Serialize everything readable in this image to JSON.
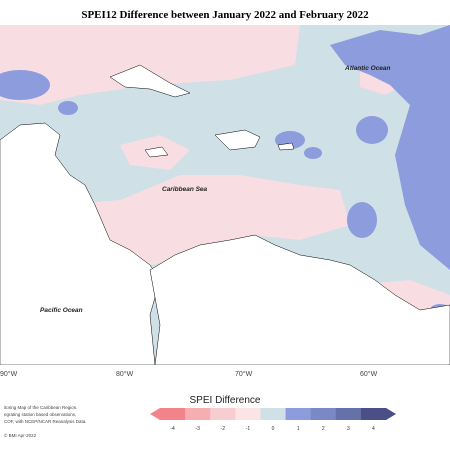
{
  "title": "SPEI12 Difference between January 2022 and February 2022",
  "map": {
    "labels": {
      "atlantic": "Atlantic Ocean",
      "caribbean": "Caribbean Sea",
      "pacific": "Pacific Ocean"
    },
    "longitude_ticks": [
      "90°W",
      "80°W",
      "70°W",
      "60°W"
    ]
  },
  "legend": {
    "title": "SPEI Difference",
    "ticks": [
      "-4",
      "-3",
      "-2",
      "-1",
      "0",
      "1",
      "2",
      "3",
      "4"
    ],
    "colors": [
      "#f2838a",
      "#f5aeb2",
      "#f8cdd1",
      "#fbe3e6",
      "#cfe0e7",
      "#8c9cdd",
      "#7b88c6",
      "#6572a9",
      "#4a4f86"
    ]
  },
  "footer": {
    "line1": "itoring Map of the Caribbean Region.",
    "line2": "egrating station based observations,",
    "line3": "COF, with NCEP/NCAR Reanalysis Data.",
    "credit": "© BMI Apr-2022"
  },
  "colors": {
    "land": "#ffffff",
    "sea_base": "#cfe0e7",
    "pink": "#f8dde2",
    "blue": "#8c9cdd"
  }
}
